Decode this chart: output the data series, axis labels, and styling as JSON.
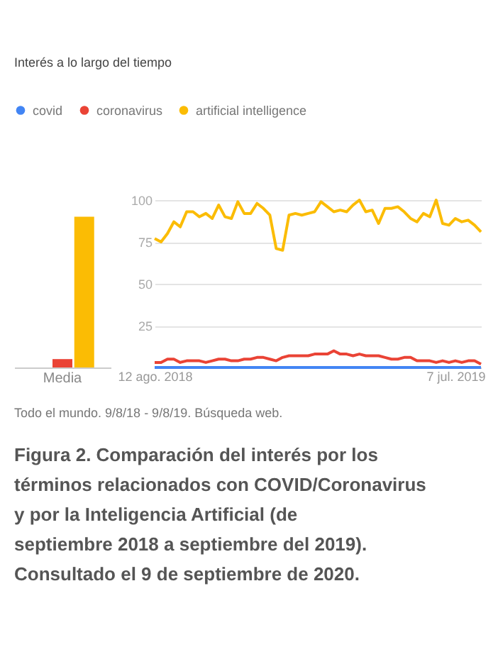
{
  "chart_data": [
    {
      "type": "bar",
      "title": "Interés a lo largo del tiempo",
      "legend": "top",
      "categories": [
        "Media"
      ],
      "ylim": [
        0,
        100
      ],
      "tick_labels": "x",
      "series": [
        {
          "name": "covid",
          "color": "#4285f4",
          "values": [
            0
          ]
        },
        {
          "name": "coronavirus",
          "color": "#ea4335",
          "values": [
            5
          ]
        },
        {
          "name": "artificial intelligence",
          "color": "#fbbc04",
          "values": [
            90
          ]
        }
      ],
      "annotations": [
        "Todo el mundo. 9/8/18 - 9/8/19. Búsqueda web.",
        "Figura 2. Comparación del interés por los términos relacionados con COVID/Coronavirus y por la Inteligencia Artificial (de septiembre 2018 a septiembre del 2019). Consultado el 9 de septiembre de 2020."
      ]
    },
    {
      "type": "line",
      "ylim": [
        0,
        100
      ],
      "yticks": [
        25,
        50,
        75,
        100
      ],
      "grid": "y",
      "xlim": [
        "2018-08-12",
        "2019-08-04"
      ],
      "xticks": [
        {
          "value": "2018-08-12",
          "label": "12 ago. 2018"
        },
        {
          "value": "2019-07-07",
          "label": "7 jul. 2019"
        }
      ],
      "x": [
        "2018-08-12",
        "2018-08-19",
        "2018-08-26",
        "2018-09-02",
        "2018-09-09",
        "2018-09-16",
        "2018-09-23",
        "2018-09-30",
        "2018-10-07",
        "2018-10-14",
        "2018-10-21",
        "2018-10-28",
        "2018-11-04",
        "2018-11-11",
        "2018-11-18",
        "2018-11-25",
        "2018-12-02",
        "2018-12-09",
        "2018-12-16",
        "2018-12-23",
        "2018-12-30",
        "2019-01-06",
        "2019-01-13",
        "2019-01-20",
        "2019-01-27",
        "2019-02-03",
        "2019-02-10",
        "2019-02-17",
        "2019-02-24",
        "2019-03-03",
        "2019-03-10",
        "2019-03-17",
        "2019-03-24",
        "2019-03-31",
        "2019-04-07",
        "2019-04-14",
        "2019-04-21",
        "2019-04-28",
        "2019-05-05",
        "2019-05-12",
        "2019-05-19",
        "2019-05-26",
        "2019-06-02",
        "2019-06-09",
        "2019-06-16",
        "2019-06-23",
        "2019-06-30",
        "2019-07-07",
        "2019-07-14",
        "2019-07-21",
        "2019-07-28",
        "2019-08-04"
      ],
      "series": [
        {
          "color": "#4285f4",
          "values": [
            0,
            0,
            0,
            0,
            0,
            0,
            0,
            0,
            0,
            0,
            0,
            0,
            0,
            0,
            0,
            0,
            0,
            0,
            0,
            0,
            0,
            0,
            0,
            0,
            0,
            0,
            0,
            0,
            0,
            0,
            0,
            0,
            0,
            0,
            0,
            0,
            0,
            0,
            0,
            0,
            0,
            0,
            0,
            0,
            0,
            0,
            0,
            0,
            0,
            0,
            0,
            0
          ]
        },
        {
          "color": "#ea4335",
          "values": [
            3,
            3,
            5,
            5,
            3,
            4,
            4,
            4,
            3,
            4,
            5,
            5,
            4,
            4,
            5,
            5,
            6,
            6,
            5,
            4,
            6,
            7,
            7,
            7,
            7,
            8,
            8,
            8,
            10,
            8,
            8,
            7,
            8,
            7,
            7,
            7,
            6,
            5,
            5,
            6,
            6,
            4,
            4,
            4,
            3,
            4,
            3,
            4,
            3,
            4,
            4,
            2
          ]
        },
        {
          "color": "#fbbc04",
          "values": [
            77,
            75,
            80,
            87,
            84,
            93,
            93,
            90,
            92,
            89,
            97,
            90,
            89,
            99,
            92,
            92,
            98,
            95,
            91,
            71,
            70,
            91,
            92,
            91,
            92,
            93,
            99,
            96,
            93,
            94,
            93,
            97,
            100,
            93,
            94,
            86,
            95,
            95,
            96,
            93,
            89,
            87,
            92,
            90,
            100,
            86,
            85,
            89,
            87,
            88,
            85,
            81
          ]
        }
      ]
    }
  ]
}
